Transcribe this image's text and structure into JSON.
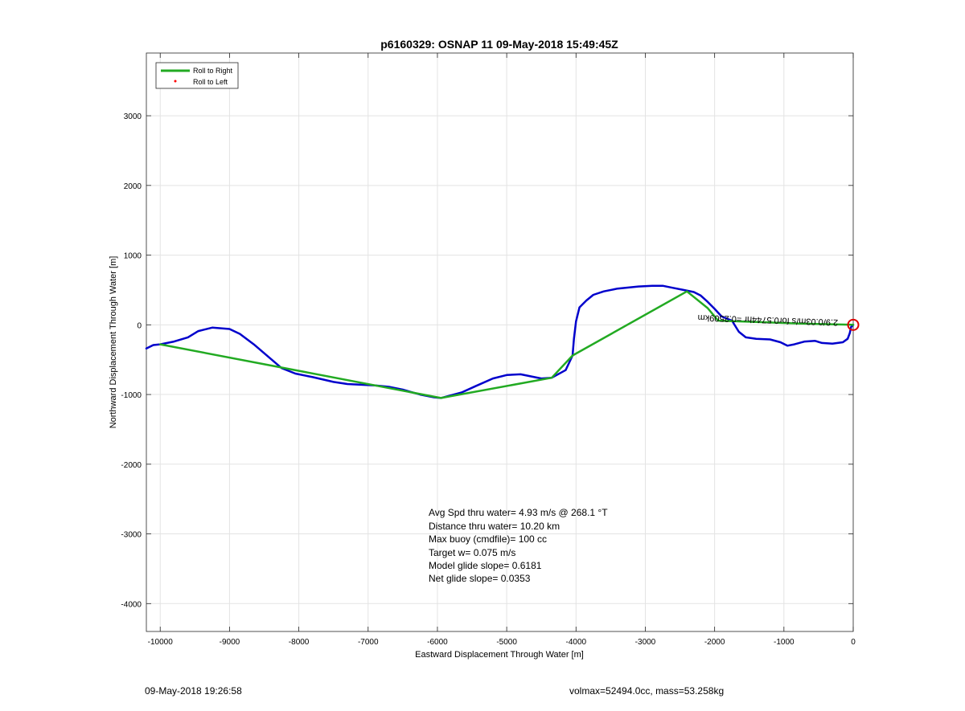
{
  "chart_data": {
    "type": "line",
    "title": "p6160329: OSNAP 11 09-May-2018 15:49:45Z",
    "xlabel": "Eastward Displacement Through Water [m]",
    "ylabel": "Northward Displacement Through Water [m]",
    "xlim": [
      -10200,
      0
    ],
    "ylim": [
      -4400,
      3900
    ],
    "xticks": [
      -10000,
      -9000,
      -8000,
      -7000,
      -6000,
      -5000,
      -4000,
      -3000,
      -2000,
      -1000,
      0
    ],
    "yticks": [
      -4000,
      -3000,
      -2000,
      -1000,
      0,
      1000,
      2000,
      3000
    ],
    "grid": true,
    "legend_position": "top-left",
    "legend": [
      {
        "label": "Roll to Right",
        "color": "#22aa22",
        "marker": "line"
      },
      {
        "label": "Roll to Left",
        "color": "#ff0000",
        "marker": "dot"
      }
    ],
    "series": [
      {
        "color": "#0000cc",
        "points": [
          [
            -10200,
            -340
          ],
          [
            -10100,
            -290
          ],
          [
            -10000,
            -280
          ],
          [
            -9800,
            -240
          ],
          [
            -9600,
            -180
          ],
          [
            -9450,
            -90
          ],
          [
            -9250,
            -40
          ],
          [
            -9000,
            -60
          ],
          [
            -8850,
            -130
          ],
          [
            -8650,
            -280
          ],
          [
            -8450,
            -450
          ],
          [
            -8250,
            -620
          ],
          [
            -8050,
            -700
          ],
          [
            -7800,
            -750
          ],
          [
            -7500,
            -820
          ],
          [
            -7300,
            -850
          ],
          [
            -7100,
            -860
          ],
          [
            -6900,
            -870
          ],
          [
            -6700,
            -890
          ],
          [
            -6500,
            -930
          ],
          [
            -6250,
            -1000
          ],
          [
            -6050,
            -1040
          ],
          [
            -5950,
            -1050
          ],
          [
            -5800,
            -1010
          ],
          [
            -5650,
            -970
          ],
          [
            -5450,
            -880
          ],
          [
            -5200,
            -770
          ],
          [
            -5000,
            -720
          ],
          [
            -4800,
            -710
          ],
          [
            -4650,
            -740
          ],
          [
            -4500,
            -770
          ],
          [
            -4350,
            -760
          ],
          [
            -4150,
            -650
          ],
          [
            -4050,
            -440
          ],
          [
            -4030,
            -200
          ],
          [
            -4000,
            50
          ],
          [
            -3950,
            250
          ],
          [
            -3850,
            350
          ],
          [
            -3750,
            430
          ],
          [
            -3600,
            480
          ],
          [
            -3400,
            520
          ],
          [
            -3100,
            550
          ],
          [
            -2900,
            560
          ],
          [
            -2750,
            560
          ],
          [
            -2600,
            530
          ],
          [
            -2450,
            500
          ],
          [
            -2300,
            470
          ],
          [
            -2200,
            420
          ],
          [
            -2100,
            330
          ],
          [
            -2000,
            230
          ],
          [
            -1900,
            120
          ],
          [
            -1750,
            60
          ],
          [
            -1650,
            -100
          ],
          [
            -1550,
            -180
          ],
          [
            -1400,
            -200
          ],
          [
            -1200,
            -210
          ],
          [
            -1050,
            -250
          ],
          [
            -950,
            -300
          ],
          [
            -850,
            -280
          ],
          [
            -700,
            -240
          ],
          [
            -550,
            -230
          ],
          [
            -450,
            -260
          ],
          [
            -300,
            -270
          ],
          [
            -150,
            -250
          ],
          [
            -80,
            -200
          ],
          [
            -50,
            -120
          ],
          [
            -30,
            -30
          ],
          [
            0,
            0
          ]
        ]
      },
      {
        "color": "#22aa22",
        "points": [
          [
            -10000,
            -280
          ],
          [
            -5950,
            -1050
          ],
          [
            -4350,
            -760
          ],
          [
            -4050,
            -440
          ],
          [
            -2400,
            480
          ],
          [
            -2100,
            240
          ],
          [
            -1950,
            60
          ],
          [
            -1400,
            40
          ],
          [
            -800,
            20
          ],
          [
            0,
            0
          ]
        ]
      }
    ],
    "end_marker": {
      "x": 0,
      "y": 0,
      "color": "#dd0000"
    },
    "annotation_text": "2.9/0.03m/s for0.5744hr =0.2509km",
    "stats_lines": [
      "Avg Spd thru water=  4.93 m/s @ 268.1 °T",
      "Distance thru water= 10.20 km",
      "Max buoy (cmdfile)= 100 cc",
      "Target w= 0.075 m/s",
      "Model glide slope= 0.6181",
      "Net glide slope= 0.0353"
    ]
  },
  "footer": {
    "left": "09-May-2018 19:26:58",
    "right": "volmax=52494.0cc, mass=53.258kg"
  }
}
